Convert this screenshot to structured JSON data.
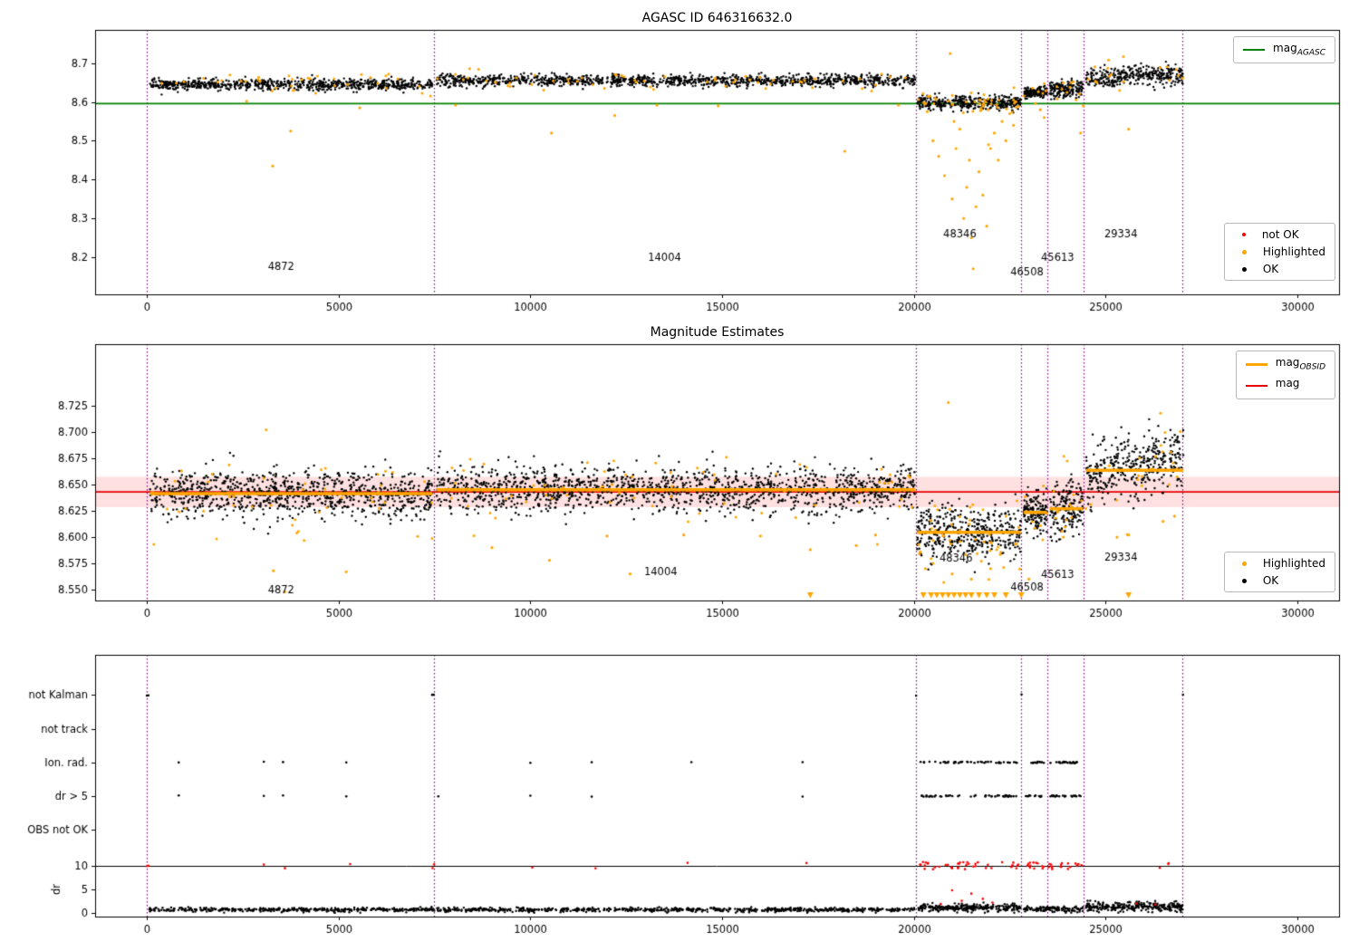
{
  "colors": {
    "ok": "#000000",
    "highlighted": "#ffa500",
    "not_ok": "#ff0000",
    "agasc_line": "#008000",
    "mag_line": "#e60000",
    "mag_band": "rgba(255,0,0,0.12)",
    "obsid_line": "#ffa500",
    "vline": "#800080",
    "axis": "#000000"
  },
  "chart_data": [
    {
      "type": "scatter",
      "title": "AGASC ID 646316632.0",
      "xlabel": "",
      "ylabel": "",
      "xlim": [
        -1350,
        31090
      ],
      "ylim": [
        8.104,
        8.786
      ],
      "xticks": [
        0,
        5000,
        10000,
        15000,
        20000,
        25000,
        30000
      ],
      "yticks": [
        8.2,
        8.3,
        8.4,
        8.5,
        8.6,
        8.7
      ],
      "ytick_decimals": 1,
      "grid": false,
      "legend_line": {
        "main": "mag",
        "sub": "AGASC"
      },
      "legend_markers": [
        {
          "label": "not OK"
        },
        {
          "label": "Highlighted"
        },
        {
          "label": "OK"
        }
      ],
      "agasc_mag_line": 8.596,
      "vlines": [
        0,
        7475,
        20050,
        22800,
        23480,
        24430,
        27000
      ],
      "segments": [
        {
          "x0": 80,
          "x1": 7450,
          "mean": 8.645,
          "sd": 0.0075,
          "n": 750,
          "fh": 0.05
        },
        {
          "x0": 7560,
          "x1": 20040,
          "mean": 8.6555,
          "sd": 0.0075,
          "n": 1200,
          "fh": 0.05
        },
        {
          "x0": 20090,
          "x1": 22790,
          "mean": 8.598,
          "sd": 0.009,
          "n": 380,
          "fh": 0.12
        },
        {
          "x0": 22860,
          "x1": 23470,
          "mean": 8.625,
          "sd": 0.007,
          "n": 130,
          "fh": 0.05
        },
        {
          "x0": 23540,
          "x1": 24410,
          "mean": 8.633,
          "sd": 0.011,
          "n": 160,
          "fh": 0.06
        },
        {
          "x0": 24490,
          "x1": 27030,
          "mean": 8.668,
          "sd": 0.013,
          "n": 340,
          "fh": 0.05,
          "trend": 0.014
        }
      ],
      "highlighted_points": [
        [
          2600,
          8.602
        ],
        [
          3280,
          8.435
        ],
        [
          3750,
          8.525
        ],
        [
          5550,
          8.585
        ],
        [
          8050,
          8.592
        ],
        [
          10550,
          8.52
        ],
        [
          12200,
          8.565
        ],
        [
          13300,
          8.592
        ],
        [
          14900,
          8.59
        ],
        [
          18200,
          8.473
        ],
        [
          19600,
          8.592
        ],
        [
          20350,
          8.575
        ],
        [
          20500,
          8.5
        ],
        [
          20650,
          8.46
        ],
        [
          20800,
          8.41
        ],
        [
          20950,
          8.725
        ],
        [
          21000,
          8.35
        ],
        [
          21050,
          8.55
        ],
        [
          21100,
          8.48
        ],
        [
          21200,
          8.53
        ],
        [
          21300,
          8.3
        ],
        [
          21380,
          8.38
        ],
        [
          21450,
          8.45
        ],
        [
          21500,
          8.25
        ],
        [
          21550,
          8.17
        ],
        [
          21620,
          8.33
        ],
        [
          21700,
          8.42
        ],
        [
          21800,
          8.36
        ],
        [
          21900,
          8.28
        ],
        [
          21950,
          8.49
        ],
        [
          22000,
          8.48
        ],
        [
          22100,
          8.52
        ],
        [
          22200,
          8.45
        ],
        [
          22300,
          8.55
        ],
        [
          22400,
          8.5
        ],
        [
          22500,
          8.57
        ],
        [
          22600,
          8.54
        ],
        [
          23300,
          8.58
        ],
        [
          23400,
          8.56
        ],
        [
          24350,
          8.52
        ],
        [
          24420,
          8.59
        ],
        [
          25600,
          8.53
        ]
      ],
      "obsid_labels": [
        {
          "text": "4872",
          "x": 3500,
          "y": 8.168
        },
        {
          "text": "14004",
          "x": 13500,
          "y": 8.19
        },
        {
          "text": "48346",
          "x": 21200,
          "y": 8.252
        },
        {
          "text": "46508",
          "x": 22950,
          "y": 8.152
        },
        {
          "text": "45613",
          "x": 23750,
          "y": 8.19
        },
        {
          "text": "29334",
          "x": 25400,
          "y": 8.252
        }
      ]
    },
    {
      "type": "scatter",
      "title": "Magnitude Estimates",
      "xlabel": "",
      "ylabel": "",
      "xlim": [
        -1350,
        31090
      ],
      "ylim": [
        8.5397,
        8.7836
      ],
      "xticks": [
        0,
        5000,
        10000,
        15000,
        20000,
        25000,
        30000
      ],
      "yticks": [
        8.55,
        8.575,
        8.6,
        8.625,
        8.65,
        8.675,
        8.7,
        8.725
      ],
      "ytick_decimals": 3,
      "grid": false,
      "legend_lines": [
        {
          "main": "mag",
          "sub": "OBSID"
        },
        {
          "main": "mag",
          "sub": ""
        }
      ],
      "legend_markers": [
        {
          "label": "Highlighted"
        },
        {
          "label": "OK"
        }
      ],
      "mag_line": 8.643,
      "mag_band": [
        8.6285,
        8.6575
      ],
      "vlines": [
        0,
        7475,
        20050,
        22800,
        23480,
        24430,
        27000
      ],
      "obsid_lines": [
        [
          80,
          7450,
          8.6415
        ],
        [
          7560,
          20040,
          8.645
        ],
        [
          20090,
          22790,
          8.6045
        ],
        [
          22860,
          23470,
          8.6235
        ],
        [
          23540,
          24410,
          8.627
        ],
        [
          24490,
          27030,
          8.6635
        ]
      ],
      "segments": [
        {
          "x0": 80,
          "x1": 7450,
          "mean": 8.641,
          "sd": 0.011,
          "n": 900,
          "fh": 0.05
        },
        {
          "x0": 7560,
          "x1": 20040,
          "mean": 8.6455,
          "sd": 0.011,
          "n": 1400,
          "fh": 0.05
        },
        {
          "x0": 20090,
          "x1": 22790,
          "mean": 8.604,
          "sd": 0.013,
          "n": 400,
          "fh": 0.12
        },
        {
          "x0": 22860,
          "x1": 23470,
          "mean": 8.624,
          "sd": 0.009,
          "n": 140,
          "fh": 0.06
        },
        {
          "x0": 23540,
          "x1": 24410,
          "mean": 8.63,
          "sd": 0.013,
          "n": 170,
          "fh": 0.08
        },
        {
          "x0": 24490,
          "x1": 27030,
          "mean": 8.667,
          "sd": 0.015,
          "n": 360,
          "fh": 0.06,
          "trend": 0.02
        }
      ],
      "highlighted_points": [
        [
          900,
          8.663
        ],
        [
          3300,
          8.568
        ],
        [
          3600,
          8.548
        ],
        [
          5200,
          8.567
        ],
        [
          9000,
          8.59
        ],
        [
          10500,
          8.578
        ],
        [
          12000,
          8.601
        ],
        [
          12600,
          8.565
        ],
        [
          14000,
          8.602
        ],
        [
          16000,
          8.601
        ],
        [
          17300,
          8.588
        ],
        [
          18500,
          8.592
        ],
        [
          19000,
          8.602
        ],
        [
          20300,
          8.57
        ],
        [
          20900,
          8.728
        ],
        [
          21000,
          8.565
        ],
        [
          21500,
          8.56
        ],
        [
          22000,
          8.57
        ],
        [
          23000,
          8.56
        ],
        [
          23900,
          8.6
        ],
        [
          25300,
          8.6
        ],
        [
          25600,
          8.602
        ],
        [
          26500,
          8.615
        ],
        [
          26800,
          8.62
        ]
      ],
      "clipped_triangles_x": [
        17300,
        20250,
        20450,
        20600,
        20750,
        20900,
        21050,
        21200,
        21350,
        21500,
        21700,
        21900,
        22100,
        22400,
        22800,
        25600
      ],
      "obsid_labels": [
        {
          "text": "4872",
          "x": 3500,
          "y": 8.5465
        },
        {
          "text": "14004",
          "x": 13400,
          "y": 8.5635
        },
        {
          "text": "48346",
          "x": 21100,
          "y": 8.5765
        },
        {
          "text": "46508",
          "x": 22950,
          "y": 8.549
        },
        {
          "text": "45613",
          "x": 23750,
          "y": 8.5615
        },
        {
          "text": "29334",
          "x": 25400,
          "y": 8.578
        }
      ]
    },
    {
      "type": "scatter",
      "title": "",
      "xlabel": "",
      "ylabel": "dr",
      "xlim": [
        -1350,
        31090
      ],
      "ylim": [
        -0.75,
        54.5
      ],
      "xticks": [
        0,
        5000,
        10000,
        15000,
        20000,
        25000,
        30000
      ],
      "grid": false,
      "vlines": [
        0,
        7475,
        20050,
        22800,
        23480,
        24430,
        27000
      ],
      "rows": [
        {
          "label": "not Kalman",
          "u": 46.0,
          "points": [
            0,
            40,
            7440,
            7480,
            20060,
            22810,
            27020
          ],
          "ranges": []
        },
        {
          "label": "not track",
          "u": 38.9,
          "points": [],
          "ranges": []
        },
        {
          "label": "Ion. rad.",
          "u": 31.8,
          "points": [
            830,
            3050,
            3550,
            5200,
            10000,
            11600,
            14200,
            17100
          ],
          "ranges": [
            [
              20150,
              22700,
              45
            ],
            [
              22900,
              23400,
              12
            ],
            [
              23550,
              24350,
              22
            ]
          ]
        },
        {
          "label": "dr > 5",
          "u": 24.7,
          "points": [
            830,
            3050,
            3550,
            5200,
            7600,
            10000,
            11600,
            17100
          ],
          "ranges": [
            [
              20150,
              22700,
              45
            ],
            [
              22900,
              23400,
              12
            ],
            [
              23550,
              24350,
              22
            ]
          ]
        },
        {
          "label": "OBS not OK",
          "u": 17.6,
          "points": [],
          "ranges": []
        }
      ],
      "dr_hline": 10,
      "dr_ticks": [
        0,
        5,
        10
      ],
      "red_clipped_points": [
        0,
        40,
        3050,
        3600,
        5300,
        7450,
        7490,
        10050,
        11700,
        14100,
        17200
      ],
      "red_clipped_ranges": [
        [
          20150,
          22800,
          40
        ],
        [
          22900,
          24400,
          28
        ],
        [
          26400,
          26800,
          3
        ]
      ],
      "dr_segments": [
        {
          "x0": 60,
          "x1": 20040,
          "mean": 0.7,
          "sd": 0.22,
          "n": 1100
        },
        {
          "x0": 20090,
          "x1": 22790,
          "mean": 1.1,
          "sd": 0.4,
          "n": 280
        },
        {
          "x0": 22860,
          "x1": 24410,
          "mean": 0.8,
          "sd": 0.3,
          "n": 130
        },
        {
          "x0": 24490,
          "x1": 27030,
          "mean": 1.3,
          "sd": 0.5,
          "n": 300
        }
      ],
      "dr_red_outliers": [
        [
          21000,
          4.8
        ],
        [
          21250,
          2.6
        ],
        [
          21500,
          4.1
        ],
        [
          21800,
          3.0
        ],
        [
          22050,
          2.2
        ],
        [
          20700,
          1.9
        ],
        [
          25800,
          2.0
        ],
        [
          26300,
          1.8
        ]
      ]
    }
  ]
}
